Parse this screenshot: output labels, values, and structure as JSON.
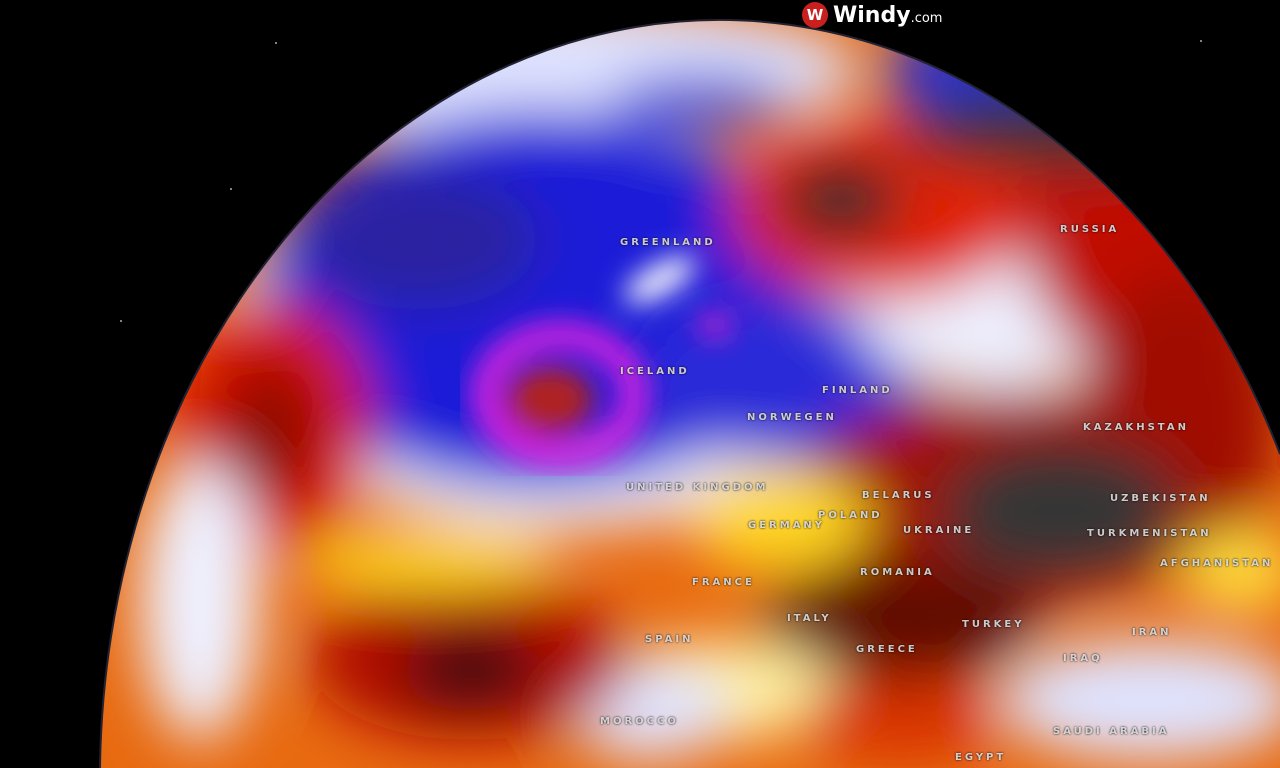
{
  "brand": {
    "name": "Windy",
    "suffix": ".com",
    "icon": "windy-logo-icon",
    "color": "#c8201e"
  },
  "labels": [
    {
      "id": "greenland",
      "text": "GREENLAND"
    },
    {
      "id": "russia",
      "text": "RUSSIA"
    },
    {
      "id": "iceland",
      "text": "ICELAND"
    },
    {
      "id": "finland",
      "text": "FINLAND"
    },
    {
      "id": "norway",
      "text": "NORWEGEN"
    },
    {
      "id": "uk",
      "text": "UNITED KINGDOM"
    },
    {
      "id": "belarus",
      "text": "BELARUS"
    },
    {
      "id": "poland",
      "text": "POLAND"
    },
    {
      "id": "germany",
      "text": "GERMANY"
    },
    {
      "id": "ukraine",
      "text": "UKRAINE"
    },
    {
      "id": "kazakhstan",
      "text": "KAZAKHSTAN"
    },
    {
      "id": "uzbekistan",
      "text": "UZBEKISTAN"
    },
    {
      "id": "turkmenistan",
      "text": "TURKMENISTAN"
    },
    {
      "id": "afghanistan",
      "text": "AFGHANISTAN"
    },
    {
      "id": "romania",
      "text": "ROMANIA"
    },
    {
      "id": "france",
      "text": "FRANCE"
    },
    {
      "id": "italy",
      "text": "ITALY"
    },
    {
      "id": "spain",
      "text": "SPAIN"
    },
    {
      "id": "greece",
      "text": "GREECE"
    },
    {
      "id": "turkey",
      "text": "TURKEY"
    },
    {
      "id": "iran",
      "text": "IRAN"
    },
    {
      "id": "iraq",
      "text": "IRAQ"
    },
    {
      "id": "saudi",
      "text": "SAUDI ARABIA"
    },
    {
      "id": "morocco",
      "text": "MOROCCO"
    },
    {
      "id": "egypt",
      "text": "EGYPT"
    }
  ],
  "colors": {
    "cold": "#1a1ad0",
    "cool": "#e8ecff",
    "warm": "#ffe020",
    "hot": "#e82000",
    "extreme": "#3a3a3a",
    "storm": "#e020e0"
  }
}
